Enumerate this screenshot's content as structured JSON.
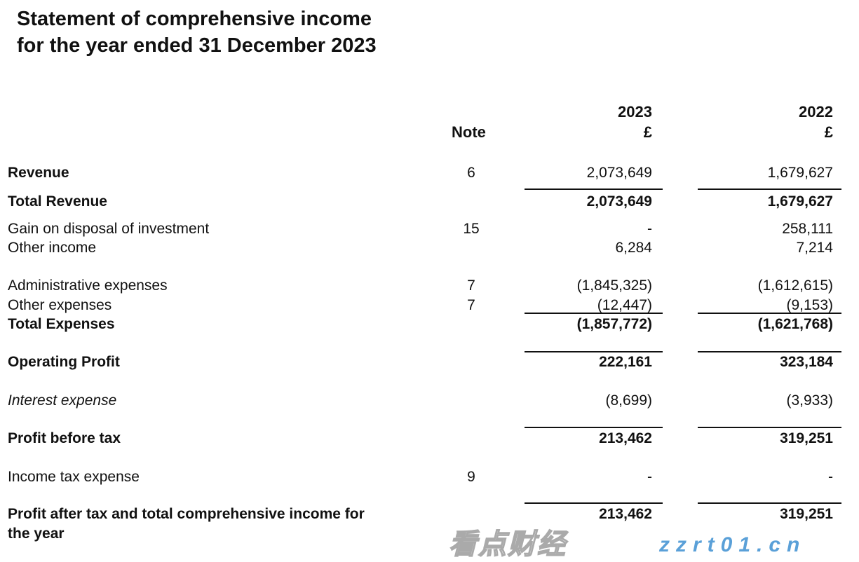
{
  "title": {
    "line1": "Statement of comprehensive income",
    "line2": "for the year ended 31 December 2023"
  },
  "columns": {
    "note": "Note",
    "year1": "2023",
    "year2": "2022",
    "currency1": "£",
    "currency2": "£"
  },
  "rows": [
    {
      "label": "Revenue",
      "note": "6",
      "v2023": "2,073,649",
      "v2022": "1,679,627"
    },
    {
      "label": "Total Revenue",
      "note": "",
      "v2023": "2,073,649",
      "v2022": "1,679,627"
    },
    {
      "label": "Gain on disposal of investment",
      "note": "15",
      "v2023": "-",
      "v2022": "258,111"
    },
    {
      "label": "Other income",
      "note": "",
      "v2023": "6,284",
      "v2022": "7,214"
    },
    {
      "label": "Administrative expenses",
      "note": "7",
      "v2023": "(1,845,325)",
      "v2022": "(1,612,615)"
    },
    {
      "label": "Other expenses",
      "note": "7",
      "v2023": "(12,447)",
      "v2022": "(9,153)"
    },
    {
      "label": "Total Expenses",
      "note": "",
      "v2023": "(1,857,772)",
      "v2022": "(1,621,768)"
    },
    {
      "label": "Operating Profit",
      "note": "",
      "v2023": "222,161",
      "v2022": "323,184"
    },
    {
      "label": "Interest expense",
      "note": "",
      "v2023": "(8,699)",
      "v2022": "(3,933)"
    },
    {
      "label": "Profit before tax",
      "note": "",
      "v2023": "213,462",
      "v2022": "319,251"
    },
    {
      "label": "Income tax expense",
      "note": "9",
      "v2023": "-",
      "v2022": "-"
    },
    {
      "label": "Profit after tax and total comprehensive income for",
      "label2": "the year",
      "note": "",
      "v2023": "213,462",
      "v2022": "319,251"
    }
  ],
  "watermark": {
    "text": "看点财经",
    "url": "zzrt01.cn"
  }
}
